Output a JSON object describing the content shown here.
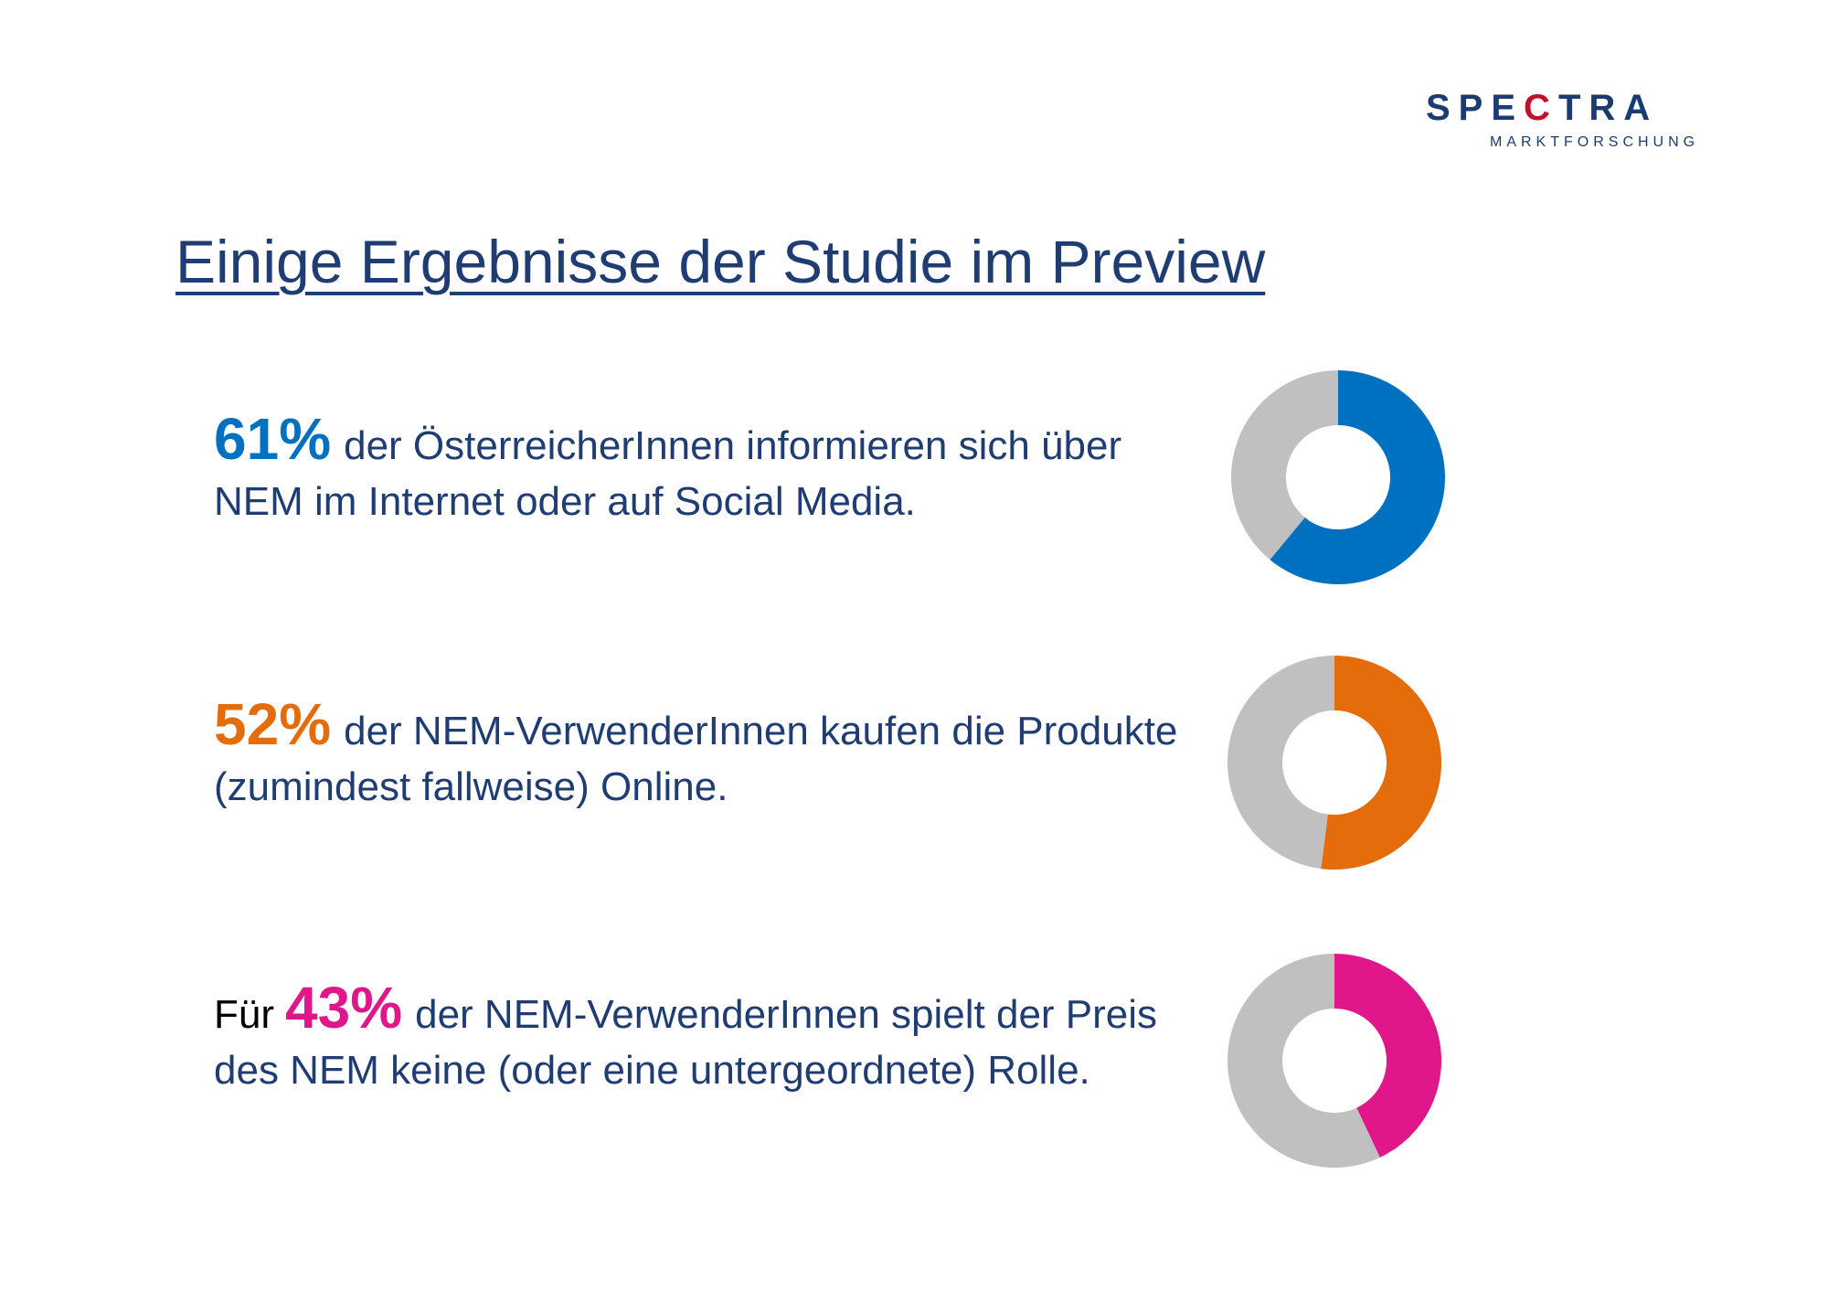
{
  "logo": {
    "main_before": "SPE",
    "main_accent": "C",
    "main_after": "TRA",
    "sub": "MARKTFORSCHUNG"
  },
  "title": "Einige Ergebnisse der Studie im Preview",
  "stats": [
    {
      "lead": "",
      "percent": "61%",
      "text": "der ÖsterreicherInnen informieren sich über NEM im Internet oder auf Social Media."
    },
    {
      "lead": "",
      "percent": "52%",
      "text": "der NEM-VerwenderInnen kaufen die Produkte (zumindest fallweise) Online."
    },
    {
      "lead": "Für",
      "percent": "43%",
      "text": "der NEM-VerwenderInnen spielt der Preis des NEM keine (oder eine untergeordnete) Rolle."
    }
  ],
  "colors": {
    "title": "#1f3d73",
    "text": "#1f3d73",
    "remainder": "#c0c0c0",
    "stat1": "#0070c0",
    "stat2": "#e46c0a",
    "stat3": "#e0168a",
    "logo_accent": "#c2102b"
  },
  "chart_data": [
    {
      "type": "pie",
      "variant": "donut",
      "values": [
        61,
        39
      ],
      "colors": [
        "#0070c0",
        "#c0c0c0"
      ]
    },
    {
      "type": "pie",
      "variant": "donut",
      "values": [
        52,
        48
      ],
      "colors": [
        "#e46c0a",
        "#c0c0c0"
      ]
    },
    {
      "type": "pie",
      "variant": "donut",
      "values": [
        43,
        57
      ],
      "colors": [
        "#e0168a",
        "#c0c0c0"
      ]
    }
  ]
}
